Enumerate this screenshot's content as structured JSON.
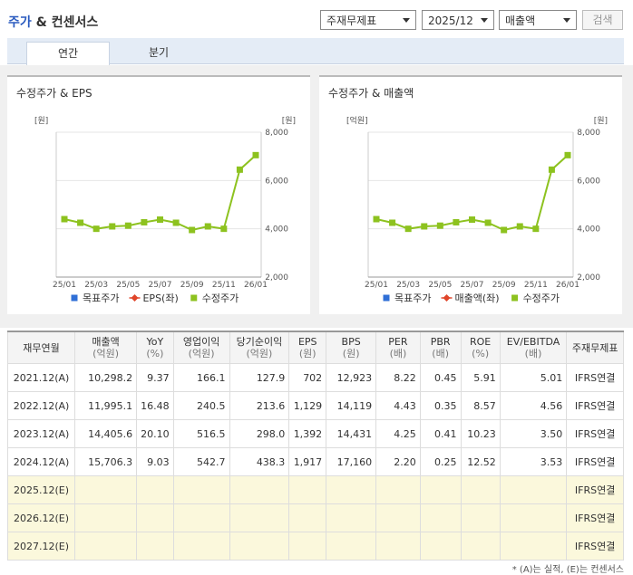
{
  "header": {
    "title_main": "주가",
    "title_rest": "& 컨센서스",
    "selects": [
      "주재무제표",
      "2025/12",
      "매출액"
    ],
    "button": "검색"
  },
  "tabs": [
    "연간",
    "분기"
  ],
  "chart_data": [
    {
      "type": "line",
      "title": "수정주가 & EPS",
      "y_label": "[원]",
      "y2_label": "[원]",
      "categories": [
        "25/01",
        null,
        "25/03",
        null,
        "25/05",
        null,
        "25/07",
        null,
        "25/09",
        null,
        "25/11",
        null,
        "26/01"
      ],
      "y2lim": [
        2000,
        8000
      ],
      "y2ticks": [
        {
          "value": 2000,
          "label": "2,000"
        },
        {
          "value": 4000,
          "label": "4,000"
        },
        {
          "value": 6000,
          "label": "6,000"
        },
        {
          "value": 8000,
          "label": "8,000"
        }
      ],
      "grid": true,
      "series": [
        {
          "name": "목표주가",
          "color": "#2f6fd6",
          "marker": "square",
          "values": [
            null,
            null,
            null,
            null,
            null,
            null,
            null,
            null,
            null,
            null,
            null,
            null,
            null
          ]
        },
        {
          "name": "EPS(좌)",
          "color": "#e0452a",
          "marker": "diamond",
          "values": [
            null,
            null,
            null,
            null,
            null,
            null,
            null,
            null,
            null,
            null,
            null,
            null,
            null
          ]
        },
        {
          "name": "수정주가",
          "color": "#8dc21f",
          "marker": "square",
          "axis": "y2",
          "values": [
            4400,
            4250,
            4000,
            4100,
            4130,
            4270,
            4380,
            4250,
            3950,
            4100,
            4000,
            6450,
            7050
          ]
        }
      ]
    },
    {
      "type": "line",
      "title": "수정주가 & 매출액",
      "y_label": "[억원]",
      "y2_label": "[원]",
      "categories": [
        "25/01",
        null,
        "25/03",
        null,
        "25/05",
        null,
        "25/07",
        null,
        "25/09",
        null,
        "25/11",
        null,
        "26/01"
      ],
      "y2lim": [
        2000,
        8000
      ],
      "y2ticks": [
        {
          "value": 2000,
          "label": "2,000"
        },
        {
          "value": 4000,
          "label": "4,000"
        },
        {
          "value": 6000,
          "label": "6,000"
        },
        {
          "value": 8000,
          "label": "8,000"
        }
      ],
      "grid": true,
      "series": [
        {
          "name": "목표주가",
          "color": "#2f6fd6",
          "marker": "square",
          "values": [
            null,
            null,
            null,
            null,
            null,
            null,
            null,
            null,
            null,
            null,
            null,
            null,
            null
          ]
        },
        {
          "name": "매출액(좌)",
          "color": "#e0452a",
          "marker": "diamond",
          "values": [
            null,
            null,
            null,
            null,
            null,
            null,
            null,
            null,
            null,
            null,
            null,
            null,
            null
          ]
        },
        {
          "name": "수정주가",
          "color": "#8dc21f",
          "marker": "square",
          "axis": "y2",
          "values": [
            4400,
            4250,
            4000,
            4100,
            4130,
            4270,
            4380,
            4250,
            3950,
            4100,
            4000,
            6450,
            7050
          ]
        }
      ]
    }
  ],
  "table": {
    "columns": [
      {
        "name": "재무연월"
      },
      {
        "name": "매출액",
        "unit": "(억원)"
      },
      {
        "name": "YoY",
        "unit": "(%)"
      },
      {
        "name": "영업이익",
        "unit": "(억원)"
      },
      {
        "name": "당기순이익",
        "unit": "(억원)"
      },
      {
        "name": "EPS",
        "unit": "(원)"
      },
      {
        "name": "BPS",
        "unit": "(원)"
      },
      {
        "name": "PER",
        "unit": "(배)"
      },
      {
        "name": "PBR",
        "unit": "(배)"
      },
      {
        "name": "ROE",
        "unit": "(%)"
      },
      {
        "name": "EV/EBITDA",
        "unit": "(배)"
      },
      {
        "name": "주재무제표"
      }
    ],
    "rows": [
      [
        "2021.12(A)",
        "10,298.2",
        "9.37",
        "166.1",
        "127.9",
        "702",
        "12,923",
        "8.22",
        "0.45",
        "5.91",
        "5.01",
        "IFRS연결"
      ],
      [
        "2022.12(A)",
        "11,995.1",
        "16.48",
        "240.5",
        "213.6",
        "1,129",
        "14,119",
        "4.43",
        "0.35",
        "8.57",
        "4.56",
        "IFRS연결"
      ],
      [
        "2023.12(A)",
        "14,405.6",
        "20.10",
        "516.5",
        "298.0",
        "1,392",
        "14,431",
        "4.25",
        "0.41",
        "10.23",
        "3.50",
        "IFRS연결"
      ],
      [
        "2024.12(A)",
        "15,706.3",
        "9.03",
        "542.7",
        "438.3",
        "1,917",
        "17,160",
        "2.20",
        "0.25",
        "12.52",
        "3.53",
        "IFRS연결"
      ]
    ],
    "estimate_rows": [
      {
        "period": "2025.12(E)",
        "basis": "IFRS연결"
      },
      {
        "period": "2026.12(E)",
        "basis": "IFRS연결"
      },
      {
        "period": "2027.12(E)",
        "basis": "IFRS연결"
      }
    ]
  },
  "footnote": "* (A)는 실적, (E)는 컨센서스"
}
